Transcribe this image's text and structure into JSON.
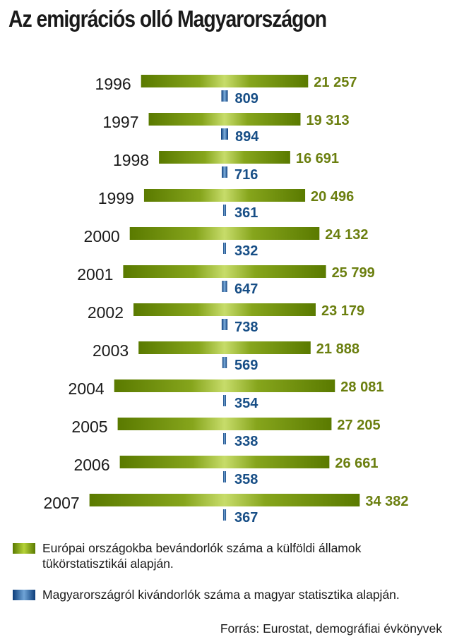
{
  "title": "Az emigrációs olló Magyarországon",
  "colors": {
    "eu_bar": "#7a9a10",
    "eu_text": "#6b7f0f",
    "hu_bar": "#174e86",
    "hu_text": "#174e86"
  },
  "chart_data": {
    "type": "bar",
    "orientation": "horizontal",
    "layout": "centered-diverging",
    "categories": [
      "1996",
      "1997",
      "1998",
      "1999",
      "2000",
      "2001",
      "2002",
      "2003",
      "2004",
      "2005",
      "2006",
      "2007"
    ],
    "series": [
      {
        "name": "Európai országokba bevándorlók száma a külföldi államok tükörstatisztikái alapján.",
        "values": [
          21257,
          19313,
          16691,
          20496,
          24132,
          25799,
          23179,
          21888,
          28081,
          27205,
          26661,
          34382
        ],
        "labels": [
          "21 257",
          "19 313",
          "16 691",
          "20 496",
          "24 132",
          "25 799",
          "23 179",
          "21 888",
          "28 081",
          "27 205",
          "26 661",
          "34 382"
        ]
      },
      {
        "name": "Magyarországról kivándorlók száma a magyar statisztika alapján.",
        "values": [
          809,
          894,
          716,
          361,
          332,
          647,
          738,
          569,
          354,
          338,
          358,
          367
        ],
        "labels": [
          "809",
          "894",
          "716",
          "361",
          "332",
          "647",
          "738",
          "569",
          "354",
          "338",
          "358",
          "367"
        ]
      }
    ],
    "xlabel": "",
    "ylabel": "",
    "grid": false,
    "legend_position": "bottom"
  },
  "legend": {
    "eu_label": "Európai országokba bevándorlók száma a külföldi államok tükörstatisztikái alapján.",
    "hu_label": "Magyarországról kivándorlók száma a magyar statisztika alapján."
  },
  "source": "Forrás: Eurostat, demográfiai évkönyvek"
}
